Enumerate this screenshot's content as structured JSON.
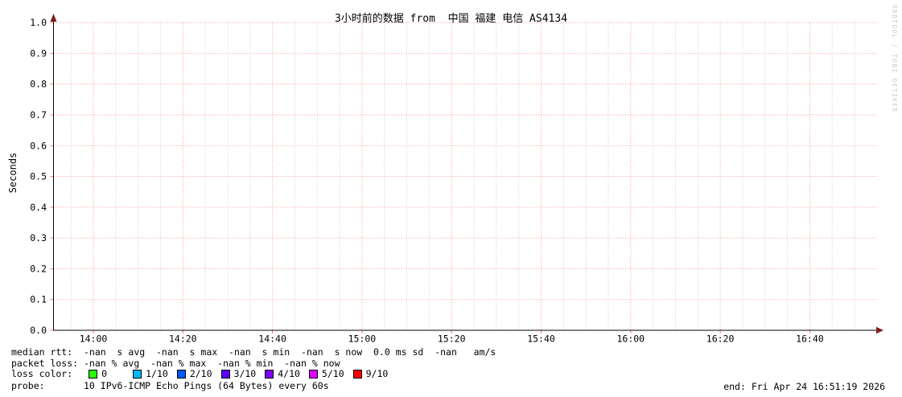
{
  "title": "3小时前的数据 from  中国 福建 电信 AS4134",
  "watermark": "RRDTOOL / TOBI OETIKER",
  "chart_data": {
    "type": "line",
    "title": "3小时前的数据 from  中国 福建 电信 AS4134",
    "xlabel": "",
    "ylabel": "Seconds",
    "x_ticks": [
      "14:00",
      "14:20",
      "14:40",
      "15:00",
      "15:20",
      "15:40",
      "16:00",
      "16:20",
      "16:40"
    ],
    "y_ticks": [
      "0.0",
      "0.1",
      "0.2",
      "0.3",
      "0.4",
      "0.5",
      "0.6",
      "0.7",
      "0.8",
      "0.9",
      "1.0"
    ],
    "ylim": [
      0.0,
      1.0
    ],
    "grid": "on",
    "legend_position": "bottom",
    "series": []
  },
  "legend": {
    "median_rtt": "median rtt:  -nan  s avg  -nan  s max  -nan  s min  -nan  s now  0.0 ms sd  -nan   am/s",
    "packet_loss": "packet loss: -nan % avg  -nan % max  -nan % min  -nan % now",
    "loss_color_label": "loss color:",
    "loss_colors": [
      {
        "label": "0",
        "color": "#24ff00"
      },
      {
        "label": "1/10",
        "color": "#00b8ff"
      },
      {
        "label": "2/10",
        "color": "#0059ff"
      },
      {
        "label": "3/10",
        "color": "#5e00ff"
      },
      {
        "label": "4/10",
        "color": "#7e00ff"
      },
      {
        "label": "5/10",
        "color": "#dd00ff"
      },
      {
        "label": "9/10",
        "color": "#ff0000"
      }
    ],
    "probe": "probe:       10 IPv6-ICMP Echo Pings (64 Bytes) every 60s",
    "end": "end: Fri Apr 24 16:51:19 2026"
  },
  "colors": {
    "major_grid": "rgba(255,0,0,0.42)",
    "minor_grid": "rgba(0,0,0,0.20)",
    "tick": "rgba(255,0,0,0.55)",
    "axis": "#000000",
    "arrow": "#7f1f1f",
    "watermark_text": "#c9c9c9"
  }
}
